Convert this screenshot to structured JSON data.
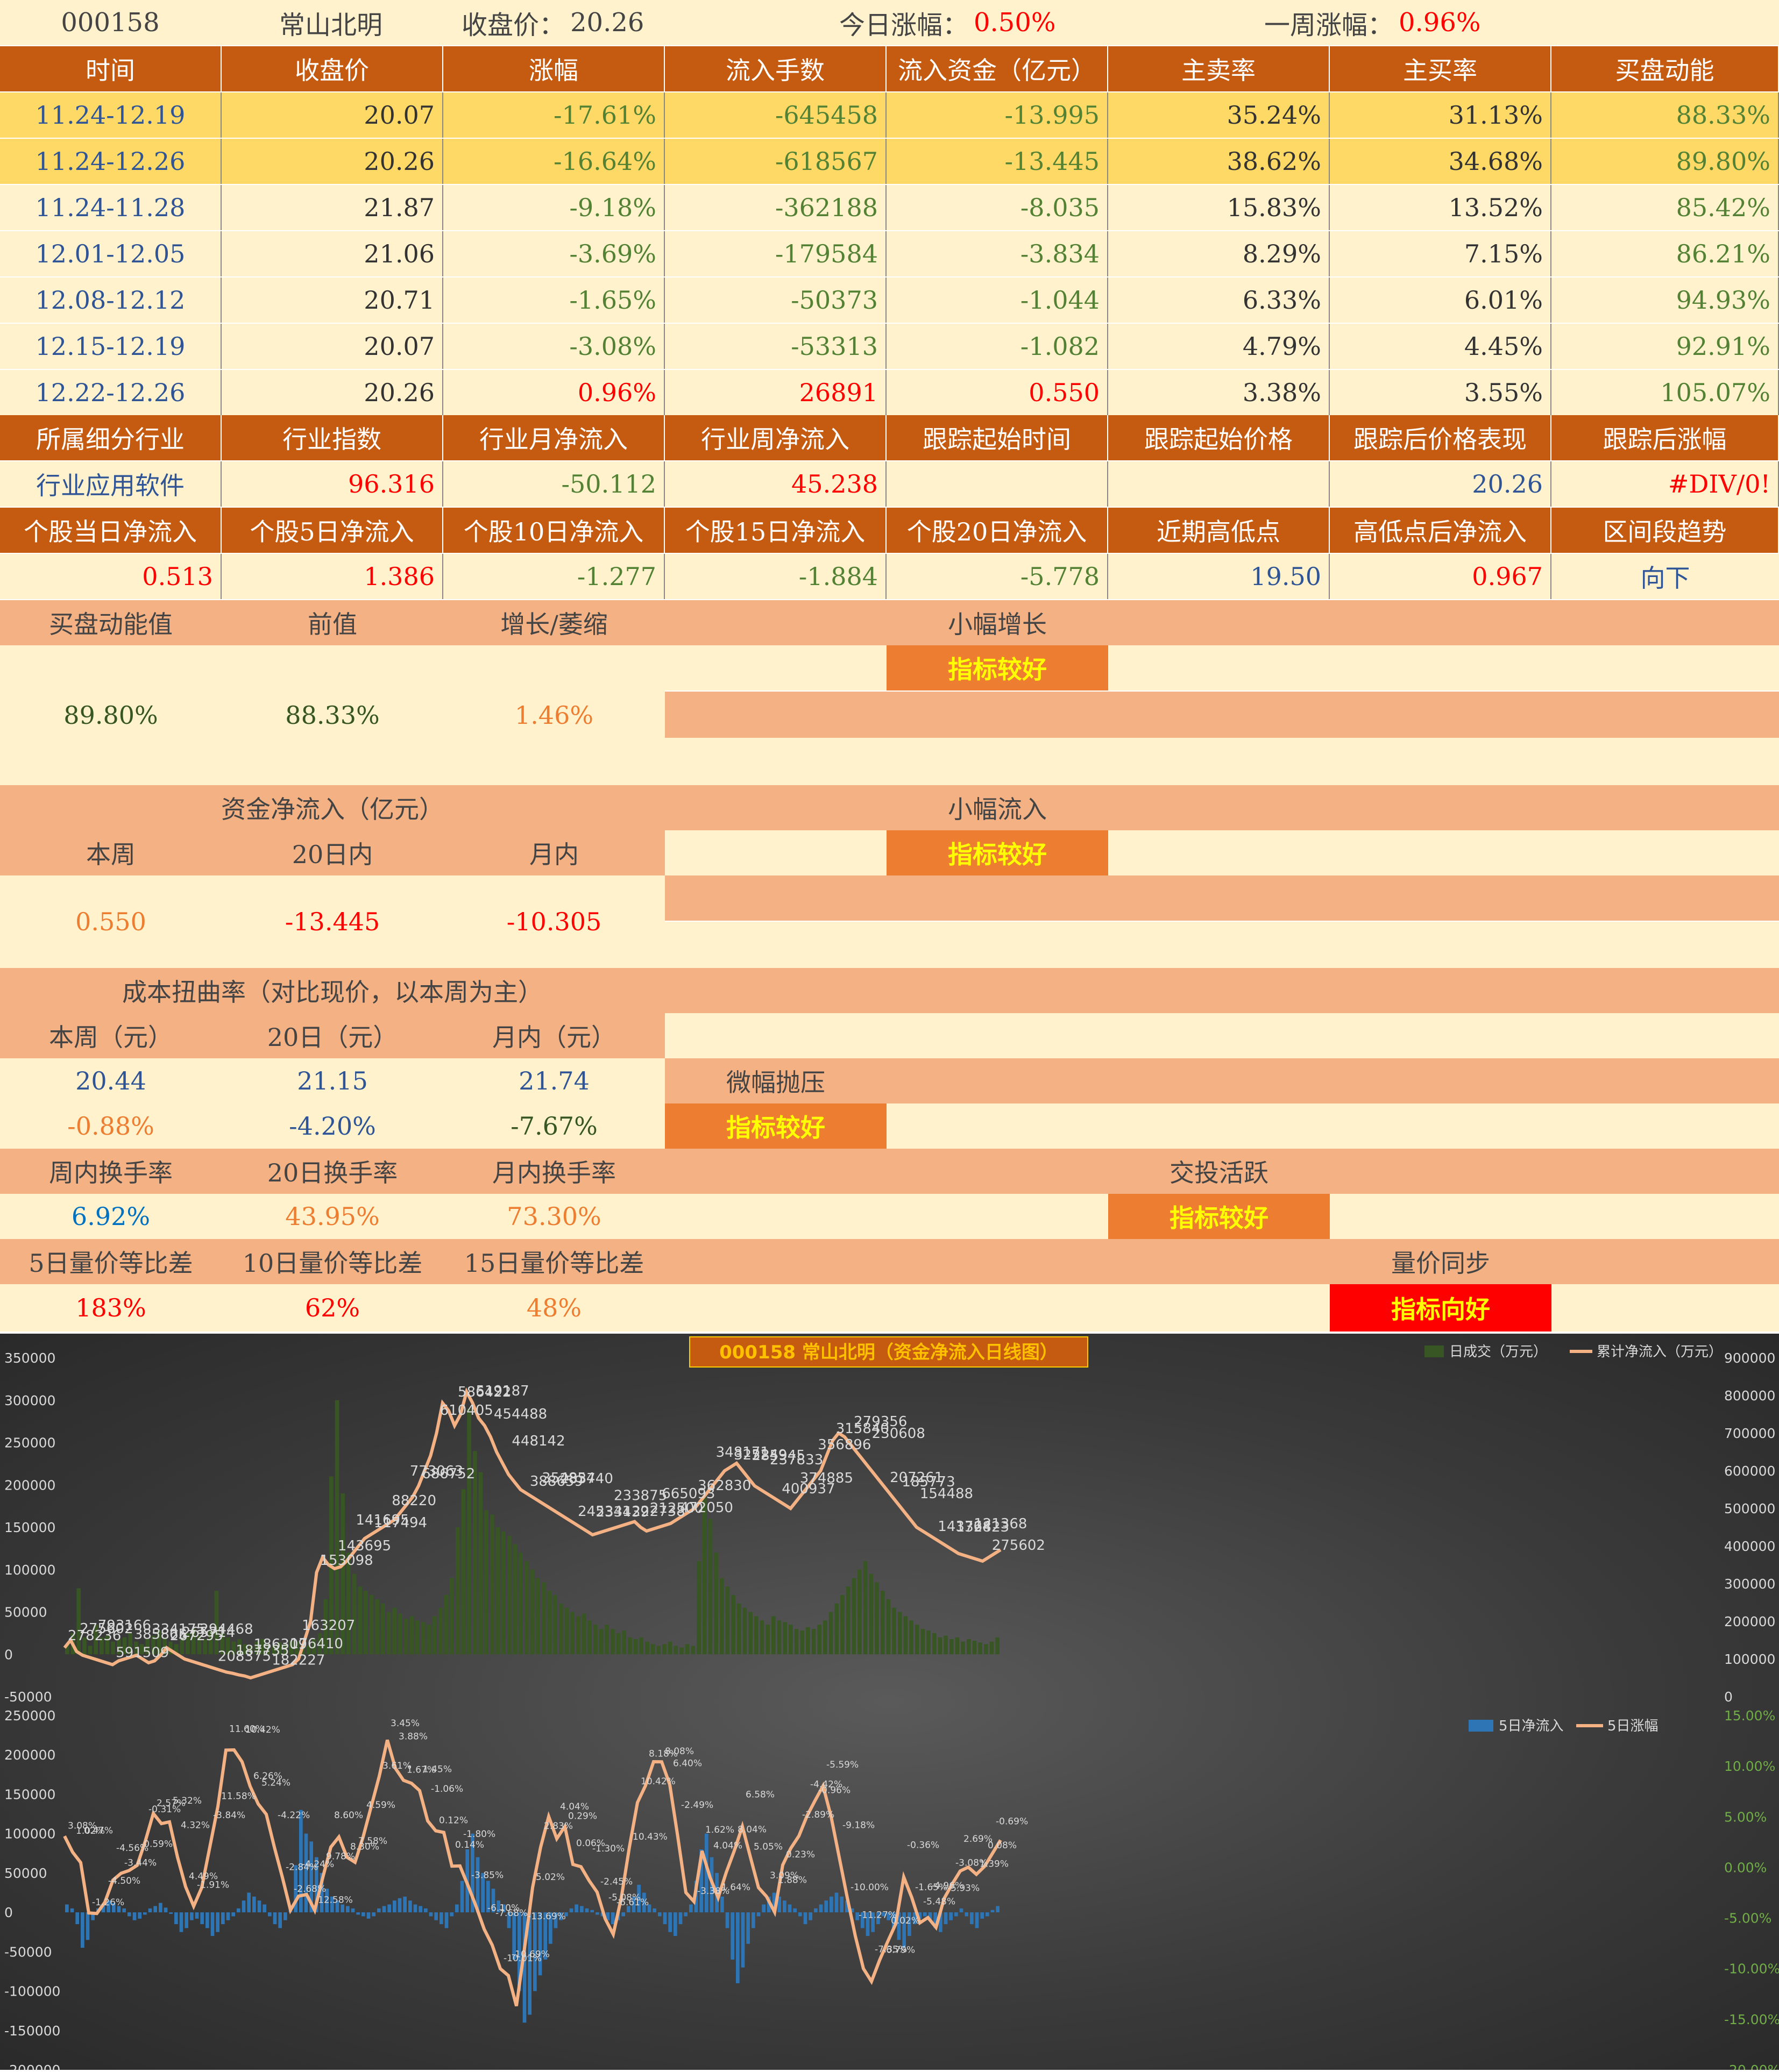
{
  "header": {
    "code": "000158",
    "name": "常山北明",
    "close_label": "收盘价：",
    "close_value": "20.26",
    "today_label": "今日涨幅：",
    "today_value": "0.50%",
    "week_label": "一周涨幅：",
    "week_value": "0.96%"
  },
  "weekly_table": {
    "headers": [
      "时间",
      "收盘价",
      "涨幅",
      "流入手数",
      "流入资金（亿元）",
      "主卖率",
      "主买率",
      "买盘动能"
    ],
    "rows": [
      [
        "11.24-12.19",
        "20.07",
        "-17.61%",
        "-645458",
        "-13.995",
        "35.24%",
        "31.13%",
        "88.33%"
      ],
      [
        "11.24-12.26",
        "20.26",
        "-16.64%",
        "-618567",
        "-13.445",
        "38.62%",
        "34.68%",
        "89.80%"
      ],
      [
        "11.24-11.28",
        "21.87",
        "-9.18%",
        "-362188",
        "-8.035",
        "15.83%",
        "13.52%",
        "85.42%"
      ],
      [
        "12.01-12.05",
        "21.06",
        "-3.69%",
        "-179584",
        "-3.834",
        "8.29%",
        "7.15%",
        "86.21%"
      ],
      [
        "12.08-12.12",
        "20.71",
        "-1.65%",
        "-50373",
        "-1.044",
        "6.33%",
        "6.01%",
        "94.93%"
      ],
      [
        "12.15-12.19",
        "20.07",
        "-3.08%",
        "-53313",
        "-1.082",
        "4.79%",
        "4.45%",
        "92.91%"
      ],
      [
        "12.22-12.26",
        "20.26",
        "0.96%",
        "26891",
        "0.550",
        "3.38%",
        "3.55%",
        "105.07%"
      ]
    ]
  },
  "industry": {
    "headers": [
      "所属细分行业",
      "行业指数",
      "行业月净流入",
      "行业周净流入",
      "跟踪起始时间",
      "跟踪起始价格",
      "跟踪后价格表现",
      "跟踪后涨幅"
    ],
    "values": [
      "行业应用软件",
      "96.316",
      "-50.112",
      "45.238",
      "",
      "",
      "20.26",
      "#DIV/0!"
    ]
  },
  "flows": {
    "headers": [
      "个股当日净流入",
      "个股5日净流入",
      "个股10日净流入",
      "个股15日净流入",
      "个股20日净流入",
      "近期高低点",
      "高低点后净流入",
      "区间段趋势"
    ],
    "values": [
      "0.513",
      "1.386",
      "-1.277",
      "-1.884",
      "-5.778",
      "19.50",
      "0.967",
      "向下"
    ]
  },
  "momentum": {
    "label_value": "买盘动能值",
    "label_prev": "前值",
    "label_change": "增长/萎缩",
    "value": "89.80%",
    "prev": "88.33%",
    "change": "1.46%",
    "status": "小幅增长",
    "badge": "指标较好"
  },
  "capital": {
    "title": "资金净流入（亿元）",
    "label_week": "本周",
    "label_20": "20日内",
    "label_month": "月内",
    "week": "0.550",
    "d20": "-13.445",
    "month": "-10.305",
    "status": "小幅流入",
    "badge": "指标较好"
  },
  "cost": {
    "title": "成本扭曲率（对比现价，以本周为主）",
    "label_week": "本周（元）",
    "label_20": "20日（元）",
    "label_month": "月内（元）",
    "week": "20.44",
    "d20": "21.15",
    "month": "21.74",
    "week_pct": "-0.88%",
    "d20_pct": "-4.20%",
    "month_pct": "-7.67%",
    "status": "微幅抛压",
    "badge": "指标较好"
  },
  "turnover": {
    "label_week": "周内换手率",
    "label_20": "20日换手率",
    "label_month": "月内换手率",
    "week": "6.92%",
    "d20": "43.95%",
    "month": "73.30%",
    "status": "交投活跃",
    "badge": "指标较好"
  },
  "volprice": {
    "label_5": "5日量价等比差",
    "label_10": "10日量价等比差",
    "label_15": "15日量价等比差",
    "v5": "183%",
    "v10": "62%",
    "v15": "48%",
    "status": "量价同步",
    "badge": "指标向好"
  },
  "chart_data": [
    {
      "type": "bar+line",
      "title": "000158  常山北明（资金净流入日线图）",
      "legend": [
        "日成交（万元）",
        "累计净流入（万元）"
      ],
      "legend_position": "top-right",
      "y_left_ticks": [
        "350000",
        "300000",
        "250000",
        "200000",
        "150000",
        "100000",
        "50000",
        "0",
        "-50000"
      ],
      "y_right_ticks": [
        "900000",
        "800000",
        "700000",
        "600000",
        "500000",
        "400000",
        "300000",
        "200000",
        "100000",
        "0"
      ],
      "ylim_left": [
        -50000,
        350000
      ],
      "ylim_right": [
        0,
        900000
      ],
      "bar_values": [
        12000,
        25000,
        78000,
        20000,
        10000,
        35000,
        20000,
        22000,
        15000,
        18000,
        20000,
        25000,
        15000,
        12000,
        18000,
        22000,
        28000,
        20000,
        15000,
        12000,
        20000,
        25000,
        30000,
        22000,
        18000,
        28000,
        75000,
        25000,
        20000,
        15000,
        18000,
        12000,
        10000,
        15000,
        18000,
        12000,
        10000,
        14000,
        12000,
        16000,
        15000,
        12000,
        10000,
        18000,
        25000,
        65000,
        210000,
        300000,
        190000,
        120000,
        95000,
        80000,
        75000,
        70000,
        65000,
        60000,
        50000,
        55000,
        48000,
        42000,
        45000,
        40000,
        38000,
        35000,
        45000,
        55000,
        70000,
        90000,
        150000,
        195000,
        290000,
        240000,
        215000,
        170000,
        165000,
        150000,
        145000,
        140000,
        130000,
        120000,
        110000,
        100000,
        90000,
        85000,
        75000,
        70000,
        60000,
        55000,
        50000,
        45000,
        48000,
        40000,
        35000,
        30000,
        35000,
        30000,
        25000,
        28000,
        20000,
        18000,
        20000,
        15000,
        12000,
        10000,
        12000,
        15000,
        10000,
        8000,
        12000,
        10000,
        110000,
        185000,
        160000,
        120000,
        90000,
        80000,
        70000,
        60000,
        55000,
        50000,
        45000,
        40000,
        35000,
        45000,
        40000,
        38000,
        35000,
        30000,
        28000,
        32000,
        30000,
        35000,
        40000,
        50000,
        60000,
        70000,
        80000,
        90000,
        100000,
        110000,
        95000,
        85000,
        75000,
        65000,
        55000,
        50000,
        45000,
        40000,
        35000,
        30000,
        28000,
        25000,
        20000,
        22000,
        18000,
        20000,
        15000,
        18000,
        16000,
        14000,
        12000,
        15000,
        20000
      ],
      "labels": [
        "278236",
        "275602",
        "793166",
        "591509",
        "385865",
        "334175",
        "267295",
        "265714",
        "294468",
        "208375",
        "187735",
        "186309",
        "182227",
        "176410",
        "163207",
        "153098",
        "143695",
        "141695",
        "117494",
        "88220",
        "773063",
        "686752",
        "610405",
        "586422",
        "519187",
        "454488",
        "448142",
        "388659",
        "354854",
        "283740",
        "245341",
        "233439",
        "233875",
        "222738",
        "212500",
        "665093",
        "472050",
        "362830",
        "348171",
        "325249",
        "285945",
        "237833",
        "400937",
        "374885",
        "356896",
        "315840",
        "279356",
        "230608",
        "207261",
        "185773",
        "154488",
        "143764",
        "132823",
        "121368",
        "275602"
      ],
      "line_values": [
        130000,
        150000,
        120000,
        110000,
        105000,
        100000,
        95000,
        90000,
        85000,
        95000,
        100000,
        105000,
        110000,
        100000,
        90000,
        95000,
        110000,
        130000,
        120000,
        110000,
        100000,
        95000,
        90000,
        85000,
        80000,
        75000,
        70000,
        65000,
        62000,
        58000,
        55000,
        50000,
        55000,
        60000,
        65000,
        70000,
        75000,
        80000,
        85000,
        100000,
        150000,
        200000,
        330000,
        370000,
        350000,
        340000,
        345000,
        360000,
        380000,
        400000,
        420000,
        430000,
        440000,
        450000,
        460000,
        470000,
        490000,
        510000,
        530000,
        560000,
        600000,
        640000,
        700000,
        780000,
        760000,
        720000,
        750000,
        810000,
        780000,
        740000,
        720000,
        690000,
        650000,
        620000,
        590000,
        570000,
        550000,
        540000,
        530000,
        520000,
        510000,
        500000,
        490000,
        480000,
        470000,
        460000,
        450000,
        440000,
        430000,
        435000,
        440000,
        445000,
        450000,
        455000,
        460000,
        465000,
        450000,
        440000,
        445000,
        450000,
        455000,
        460000,
        470000,
        480000,
        490000,
        500000,
        520000,
        540000,
        560000,
        580000,
        600000,
        610000,
        620000,
        600000,
        580000,
        560000,
        550000,
        540000,
        530000,
        520000,
        510000,
        500000,
        520000,
        540000,
        560000,
        580000,
        600000,
        640000,
        680000,
        700000,
        690000,
        670000,
        650000,
        630000,
        610000,
        590000,
        570000,
        550000,
        530000,
        510000,
        490000,
        470000,
        450000,
        440000,
        430000,
        420000,
        410000,
        400000,
        390000,
        380000,
        375000,
        370000,
        365000,
        360000,
        370000,
        380000,
        390000
      ]
    },
    {
      "type": "bar+line",
      "legend": [
        "5日净流入",
        "5日涨幅"
      ],
      "legend_position": "top-right",
      "y_left_ticks": [
        "250000",
        "200000",
        "150000",
        "100000",
        "50000",
        "0",
        "-50000",
        "-100000",
        "-150000",
        "-200000"
      ],
      "y_right_ticks": [
        "15.00%",
        "10.00%",
        "5.00%",
        "0.00%",
        "-5.00%",
        "-10.00%",
        "-15.00%",
        "-20.00%"
      ],
      "ylim_left": [
        -200000,
        250000
      ],
      "ylim_right": [
        -20,
        15
      ],
      "bar_values": [
        10000,
        5000,
        -15000,
        -45000,
        -35000,
        -10000,
        5000,
        10000,
        15000,
        12000,
        8000,
        5000,
        -5000,
        -10000,
        -8000,
        -3000,
        5000,
        8000,
        12000,
        6000,
        -2000,
        -15000,
        -25000,
        -20000,
        -10000,
        -8000,
        -15000,
        -20000,
        -30000,
        -25000,
        -15000,
        -10000,
        -5000,
        5000,
        15000,
        25000,
        20000,
        15000,
        10000,
        -5000,
        -15000,
        -20000,
        -10000,
        5000,
        60000,
        130000,
        100000,
        90000,
        70000,
        50000,
        30000,
        20000,
        15000,
        10000,
        8000,
        5000,
        -3000,
        -5000,
        -8000,
        -5000,
        5000,
        8000,
        10000,
        15000,
        18000,
        20000,
        15000,
        10000,
        8000,
        5000,
        -5000,
        -10000,
        -15000,
        -20000,
        -5000,
        10000,
        40000,
        80000,
        100000,
        70000,
        50000,
        40000,
        30000,
        15000,
        10000,
        -20000,
        -60000,
        -100000,
        -140000,
        -130000,
        -100000,
        -80000,
        -60000,
        -40000,
        -20000,
        -10000,
        -5000,
        5000,
        10000,
        8000,
        5000,
        3000,
        -3000,
        -5000,
        -10000,
        -15000,
        -10000,
        -5000,
        8000,
        20000,
        35000,
        25000,
        10000,
        5000,
        -5000,
        -15000,
        -25000,
        -30000,
        -15000,
        -5000,
        10000,
        40000,
        80000,
        100000,
        70000,
        50000,
        20000,
        -20000,
        -60000,
        -90000,
        -70000,
        -40000,
        -20000,
        -5000,
        10000,
        20000,
        25000,
        20000,
        15000,
        10000,
        5000,
        -5000,
        -15000,
        -10000,
        5000,
        10000,
        15000,
        20000,
        25000,
        20000,
        15000,
        5000,
        -10000,
        -20000,
        -30000,
        -25000,
        -15000,
        -5000,
        -10000,
        -20000,
        -35000,
        -45000,
        -30000,
        -15000,
        -8000,
        -5000,
        -10000,
        -20000,
        -25000,
        -15000,
        -10000,
        -5000,
        5000,
        -5000,
        -15000,
        -20000,
        -8000,
        -5000,
        3000,
        8000
      ],
      "labels": [
        "3.08%",
        "1.02%",
        "0.47%",
        "-1.26%",
        "-4.50%",
        "-4.56%",
        "-3.44%",
        "-0.59%",
        "-0.31%",
        "2.57%",
        "5.32%",
        "4.32%",
        "4.49%",
        "-1.91%",
        "-3.84%",
        "11.58%",
        "11.60%",
        "10.42%",
        "6.26%",
        "5.24%",
        "-4.22%",
        "-2.84%",
        "-2.68%",
        "-4.24%",
        "12.58%",
        "9.78%",
        "8.60%",
        "8.30%",
        "7.58%",
        "4.59%",
        "3.61%",
        "3.45%",
        "3.88%",
        "1.67%",
        "1.45%",
        "-1.06%",
        "0.12%",
        "0.14%",
        "-1.80%",
        "-3.85%",
        "-6.10%",
        "-7.68%",
        "-10.01%",
        "-10.69%",
        "-13.69%",
        "5.02%",
        "2.83%",
        "4.04%",
        "0.29%",
        "0.06%",
        "-1.30%",
        "-2.45%",
        "-5.08%",
        "-6.61%",
        "10.43%",
        "10.42%",
        "8.18%",
        "8.08%",
        "6.40%",
        "-2.49%",
        "-3.38%",
        "1.62%",
        "4.04%",
        "1.64%",
        "8.04%",
        "6.58%",
        "5.05%",
        "3.09%",
        "1.88%",
        "0.23%",
        "-2.89%",
        "-4.42%",
        "-0.96%",
        "-5.59%",
        "-9.18%",
        "-10.00%",
        "-11.27%",
        "-7.35%",
        "-6.79%",
        "0.02%",
        "-0.36%",
        "-1.65%",
        "-5.48%",
        "-4.96%",
        "-5.93%",
        "-3.08%",
        "2.69%",
        "1.39%",
        "0.08%",
        "-0.69%"
      ],
      "line_values": [
        3.08,
        1.5,
        0.47,
        -4.5,
        -4.56,
        -3.44,
        -1.26,
        -0.59,
        -0.31,
        0.2,
        2.57,
        5.32,
        4.32,
        4.49,
        1.0,
        -1.91,
        -3.84,
        -2.0,
        2.0,
        6.0,
        11.58,
        11.6,
        10.42,
        8.0,
        6.26,
        5.24,
        2.0,
        -1.0,
        -4.22,
        -2.84,
        -2.68,
        -4.24,
        -1.0,
        2.0,
        3.0,
        1.0,
        0.5,
        3.0,
        6.0,
        9.0,
        12.58,
        9.78,
        8.6,
        8.3,
        7.58,
        4.59,
        3.61,
        3.45,
        0.12,
        0.14,
        -1.8,
        -3.85,
        -6.1,
        -7.68,
        -10.01,
        -10.69,
        -13.69,
        -8.0,
        -2.0,
        2.0,
        5.02,
        2.83,
        4.04,
        0.29,
        0.06,
        -1.3,
        -2.45,
        -5.08,
        -6.61,
        -3.0,
        2.0,
        6.4,
        8.08,
        10.43,
        10.42,
        8.18,
        3.0,
        -2.49,
        -3.38,
        1.62,
        -1.0,
        -3.0,
        -0.5,
        1.64,
        4.04,
        1.0,
        -2.0,
        -2.89,
        -4.42,
        0.23,
        1.88,
        3.09,
        5.05,
        6.58,
        8.04,
        5.0,
        1.0,
        -3.0,
        -6.79,
        -10.0,
        -11.27,
        -9.18,
        -7.35,
        -5.59,
        -0.96,
        -3.0,
        -5.48,
        -4.96,
        -5.93,
        -3.08,
        -1.65,
        -0.36,
        0.02,
        -0.69,
        0.08,
        1.39,
        2.69
      ]
    }
  ]
}
